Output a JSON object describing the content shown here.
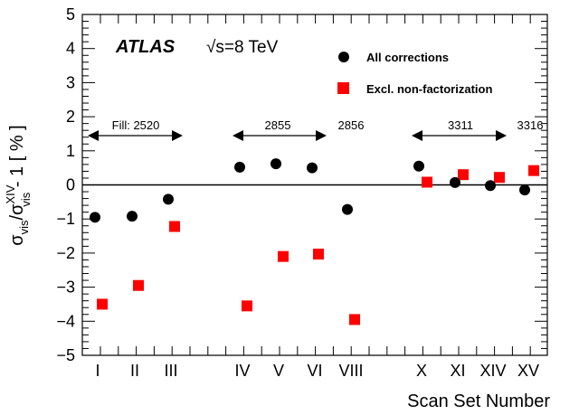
{
  "chart_data": {
    "type": "scatter",
    "title": "",
    "xlabel": "Scan Set Number",
    "ylabel": {
      "prefix": "σ",
      "num_sub": "vis",
      "slash": "/σ",
      "den_sup": "XIV",
      "den_sub": "vis",
      "suffix": " - 1 [ % ]"
    },
    "ylim": [
      -5,
      5
    ],
    "yticks": [
      "−5",
      "−4",
      "−3",
      "−2",
      "−1",
      "0",
      "1",
      "2",
      "3",
      "4",
      "5"
    ],
    "categories": [
      "I",
      "II",
      "III",
      "IV",
      "V",
      "VI",
      "VIII",
      "X",
      "XI",
      "XIV",
      "XV"
    ],
    "series": [
      {
        "name": "All corrections",
        "marker": "circle",
        "color": "#000000",
        "values": [
          -0.95,
          -0.92,
          -0.42,
          0.52,
          0.62,
          0.5,
          -0.72,
          0.55,
          0.07,
          -0.02,
          -0.15
        ]
      },
      {
        "name": "Excl. non-factorization",
        "marker": "square",
        "color": "#ff0000",
        "values": [
          -3.5,
          -2.95,
          -1.22,
          -3.55,
          -2.1,
          -2.03,
          -3.95,
          0.08,
          0.3,
          0.22,
          0.42
        ]
      }
    ],
    "annotations": {
      "experiment": "ATLAS",
      "energy": "√s=8 TeV",
      "fills": [
        "Fill: 2520",
        "2855",
        "2856",
        "3311",
        "3316"
      ]
    },
    "legend_position": "top-right",
    "grid": false
  }
}
